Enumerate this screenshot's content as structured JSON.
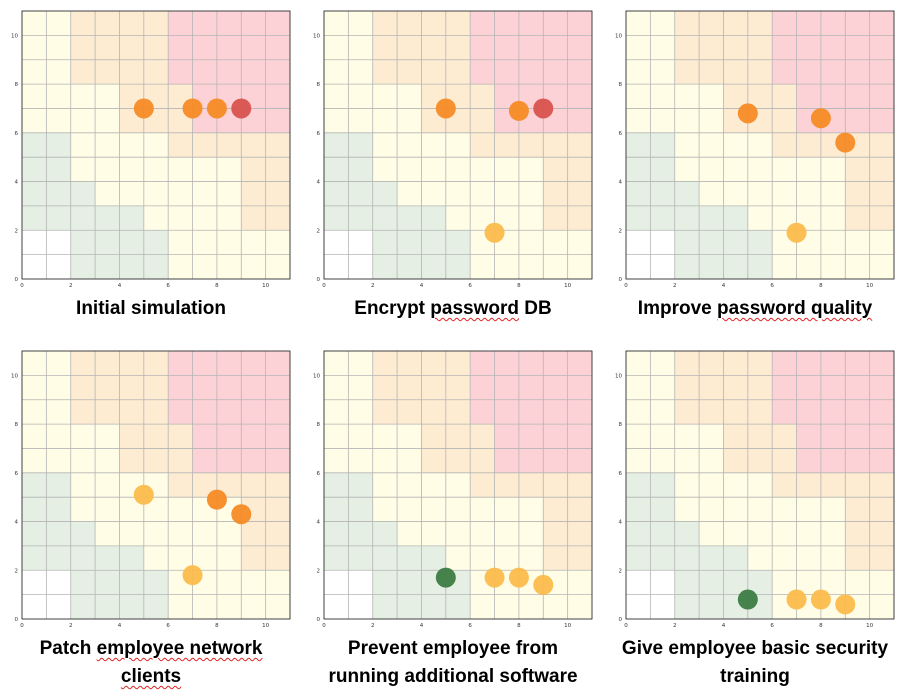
{
  "chart_data": [
    {
      "type": "scatter",
      "title": "Initial simulation",
      "caption_lines": [
        [
          {
            "text": "Initial simulation",
            "spell": false
          }
        ]
      ],
      "xlim": [
        0,
        11
      ],
      "ylim": [
        0,
        11
      ],
      "xticks": [
        0,
        2,
        4,
        6,
        8,
        10
      ],
      "yticks": [
        0,
        2,
        4,
        6,
        8,
        10
      ],
      "points": [
        {
          "x": 5,
          "y": 7,
          "level": "high"
        },
        {
          "x": 7,
          "y": 7,
          "level": "high"
        },
        {
          "x": 8,
          "y": 7,
          "level": "high"
        },
        {
          "x": 9,
          "y": 7,
          "level": "critical"
        }
      ]
    },
    {
      "type": "scatter",
      "title": "Encrypt password DB",
      "caption_lines": [
        [
          {
            "text": "Encrypt ",
            "spell": false
          },
          {
            "text": "password",
            "spell": true
          },
          {
            "text": " DB",
            "spell": false
          }
        ]
      ],
      "xlim": [
        0,
        11
      ],
      "ylim": [
        0,
        11
      ],
      "xticks": [
        0,
        2,
        4,
        6,
        8,
        10
      ],
      "yticks": [
        0,
        2,
        4,
        6,
        8,
        10
      ],
      "points": [
        {
          "x": 5,
          "y": 7,
          "level": "high"
        },
        {
          "x": 8,
          "y": 6.9,
          "level": "high"
        },
        {
          "x": 9,
          "y": 7,
          "level": "critical"
        },
        {
          "x": 7,
          "y": 1.9,
          "level": "medium"
        }
      ]
    },
    {
      "type": "scatter",
      "title": "Improve password quality",
      "caption_lines": [
        [
          {
            "text": "Improve ",
            "spell": false
          },
          {
            "text": "password quality",
            "spell": true
          }
        ]
      ],
      "xlim": [
        0,
        11
      ],
      "ylim": [
        0,
        11
      ],
      "xticks": [
        0,
        2,
        4,
        6,
        8,
        10
      ],
      "yticks": [
        0,
        2,
        4,
        6,
        8,
        10
      ],
      "points": [
        {
          "x": 5,
          "y": 6.8,
          "level": "high"
        },
        {
          "x": 8,
          "y": 6.6,
          "level": "high"
        },
        {
          "x": 9,
          "y": 5.6,
          "level": "high"
        },
        {
          "x": 7,
          "y": 1.9,
          "level": "medium"
        }
      ]
    },
    {
      "type": "scatter",
      "title": "Patch employee network clients",
      "caption_lines": [
        [
          {
            "text": "Patch ",
            "spell": false
          },
          {
            "text": "employee network",
            "spell": true
          }
        ],
        [
          {
            "text": "clients",
            "spell": true
          }
        ]
      ],
      "xlim": [
        0,
        11
      ],
      "ylim": [
        0,
        11
      ],
      "xticks": [
        0,
        2,
        4,
        6,
        8,
        10
      ],
      "yticks": [
        0,
        2,
        4,
        6,
        8,
        10
      ],
      "points": [
        {
          "x": 5,
          "y": 5.1,
          "level": "medium"
        },
        {
          "x": 8,
          "y": 4.9,
          "level": "high"
        },
        {
          "x": 9,
          "y": 4.3,
          "level": "high"
        },
        {
          "x": 7,
          "y": 1.8,
          "level": "medium"
        }
      ]
    },
    {
      "type": "scatter",
      "title": "Prevent employee from running additional software",
      "caption_lines": [
        [
          {
            "text": "Prevent employee from",
            "spell": false
          }
        ],
        [
          {
            "text": "running additional software",
            "spell": false
          }
        ]
      ],
      "xlim": [
        0,
        11
      ],
      "ylim": [
        0,
        11
      ],
      "xticks": [
        0,
        2,
        4,
        6,
        8,
        10
      ],
      "yticks": [
        0,
        2,
        4,
        6,
        8,
        10
      ],
      "points": [
        {
          "x": 5,
          "y": 1.7,
          "level": "low"
        },
        {
          "x": 7,
          "y": 1.7,
          "level": "medium"
        },
        {
          "x": 8,
          "y": 1.7,
          "level": "medium"
        },
        {
          "x": 9,
          "y": 1.4,
          "level": "medium"
        }
      ]
    },
    {
      "type": "scatter",
      "title": "Give employee basic security training",
      "caption_lines": [
        [
          {
            "text": "Give employee basic security",
            "spell": false
          }
        ],
        [
          {
            "text": "training",
            "spell": false
          }
        ]
      ],
      "xlim": [
        0,
        11
      ],
      "ylim": [
        0,
        11
      ],
      "xticks": [
        0,
        2,
        4,
        6,
        8,
        10
      ],
      "yticks": [
        0,
        2,
        4,
        6,
        8,
        10
      ],
      "points": [
        {
          "x": 5,
          "y": 0.8,
          "level": "low"
        },
        {
          "x": 7,
          "y": 0.8,
          "level": "medium"
        },
        {
          "x": 8,
          "y": 0.8,
          "level": "medium"
        },
        {
          "x": 9,
          "y": 0.6,
          "level": "medium"
        }
      ]
    }
  ],
  "risk_zones": [
    {
      "x": [
        2,
        4
      ],
      "y": [
        8,
        11
      ],
      "zone": "orange"
    },
    {
      "x": [
        4,
        6
      ],
      "y": [
        6,
        11
      ],
      "zone": "orange"
    },
    {
      "x": [
        6,
        7
      ],
      "y": [
        6,
        8
      ],
      "zone": "orange"
    },
    {
      "x": [
        6,
        9
      ],
      "y": [
        5,
        6
      ],
      "zone": "orange"
    },
    {
      "x": [
        9,
        11
      ],
      "y": [
        2,
        6
      ],
      "zone": "orange"
    },
    {
      "x": [
        6,
        11
      ],
      "y": [
        8,
        11
      ],
      "zone": "red"
    },
    {
      "x": [
        7,
        11
      ],
      "y": [
        6,
        8
      ],
      "zone": "red"
    },
    {
      "x": [
        0,
        2
      ],
      "y": [
        2,
        6
      ],
      "zone": "green"
    },
    {
      "x": [
        2,
        3
      ],
      "y": [
        0,
        4
      ],
      "zone": "green"
    },
    {
      "x": [
        3,
        5
      ],
      "y": [
        0,
        3
      ],
      "zone": "green"
    },
    {
      "x": [
        5,
        6
      ],
      "y": [
        0,
        2
      ],
      "zone": "green"
    },
    {
      "x": [
        0,
        2
      ],
      "y": [
        0,
        2
      ],
      "zone": "white"
    }
  ],
  "colors": {
    "zone_base": "#fffde6",
    "zone_orange": "#fdebd2",
    "zone_red": "#fdd2d7",
    "zone_green": "#e5efe3",
    "zone_white": "#ffffff",
    "grid": "#b5b5b5",
    "low": "#3d7c43",
    "medium": "#fbbc4c",
    "high": "#f78b25",
    "critical": "#d9534f"
  }
}
